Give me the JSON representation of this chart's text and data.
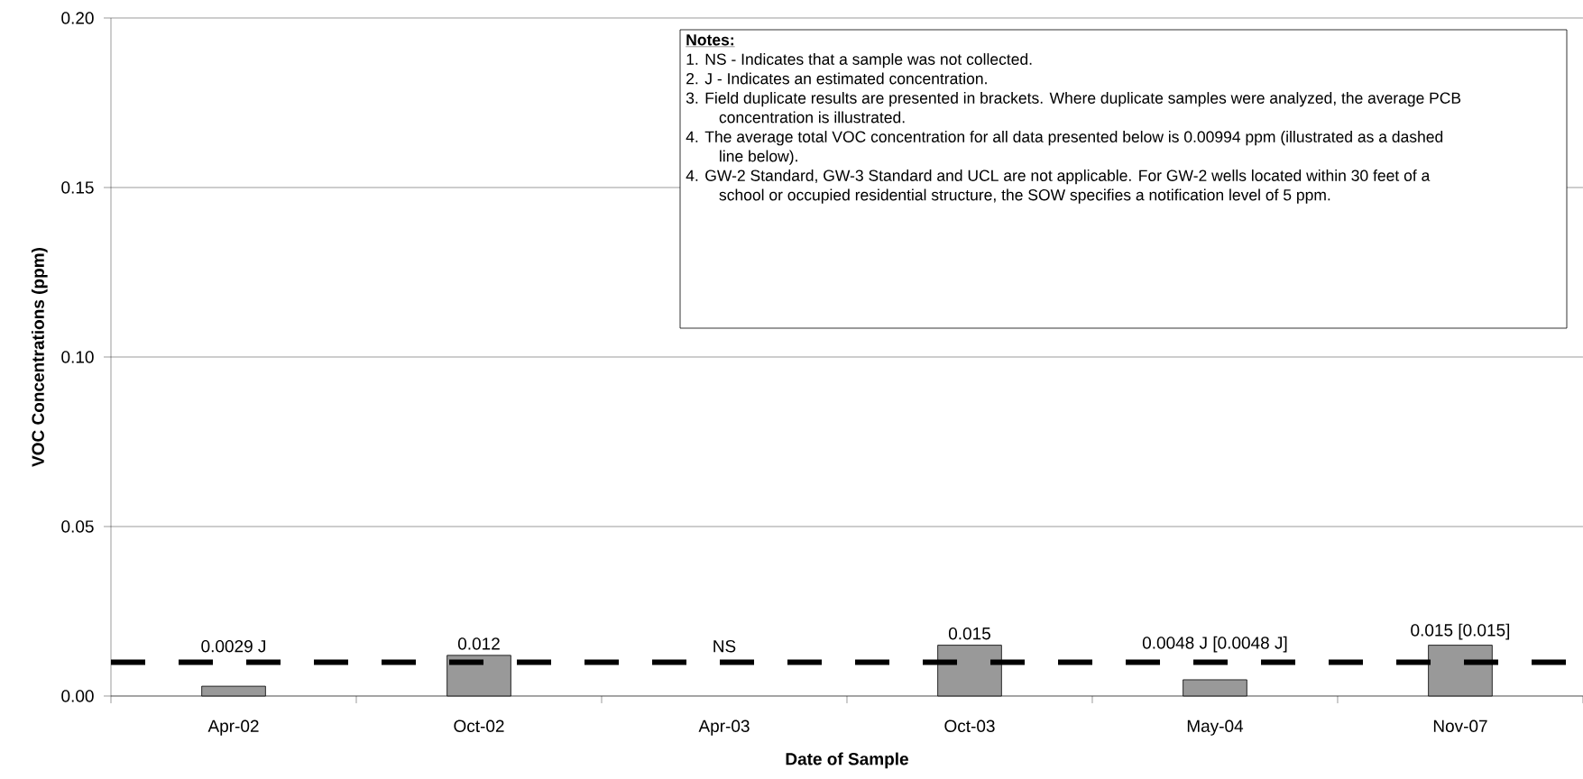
{
  "chart_data": {
    "type": "bar",
    "xlabel": "Date of Sample",
    "ylabel": "VOC Concentrations (ppm)",
    "categories": [
      "Apr-02",
      "Oct-02",
      "Apr-03",
      "Oct-03",
      "May-04",
      "Nov-07"
    ],
    "values": [
      0.0029,
      0.012,
      null,
      0.015,
      0.0048,
      0.015
    ],
    "value_labels": [
      "0.0029 J",
      "0.012",
      "NS",
      "0.015",
      "0.0048 J [0.0048 J]",
      "0.015 [0.015]"
    ],
    "color": "#999999",
    "ylim": [
      0,
      0.2
    ],
    "yticks": [
      {
        "value": 0,
        "label": "0.00"
      },
      {
        "value": 0.05,
        "label": "0.05"
      },
      {
        "value": 0.1,
        "label": "0.10"
      },
      {
        "value": 0.15,
        "label": "0.15"
      },
      {
        "value": 0.2,
        "label": "0.20"
      }
    ],
    "grid": "y",
    "ref_lines": [
      {
        "axis": "y",
        "value": 0.00994,
        "color": "#000000",
        "line_style": "dashed"
      }
    ],
    "annotations": [
      "Notes:",
      "1.  NS - Indicates that a sample was not collected.",
      "2.  J - Indicates an estimated concentration.",
      "3.  Field duplicate results are presented in brackets.  Where duplicate samples were analyzed, the average PCB concentration is illustrated.",
      "4.  The average total VOC concentration for all data presented below is 0.00994 ppm (illustrated as a dashed line below).",
      "4.  GW-2 Standard, GW-3 Standard and UCL are not applicable. For GW-2 wells located within 30 feet of a school or occupied residential structure, the SOW specifies a notification level of 5 ppm."
    ]
  }
}
